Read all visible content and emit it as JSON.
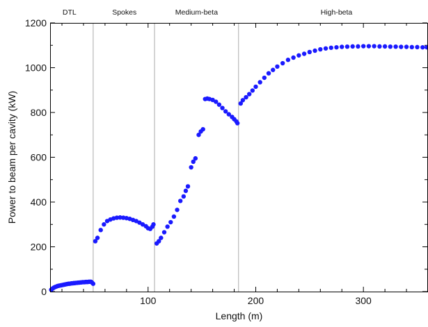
{
  "chart_data": {
    "type": "scatter",
    "xlabel": "Length (m)",
    "ylabel": "Power to beam per cavity (kW)",
    "xlim": [
      9,
      360
    ],
    "ylim": [
      0,
      1200
    ],
    "x_ticks": [
      100,
      200,
      300
    ],
    "y_ticks": [
      0,
      200,
      400,
      600,
      800,
      1000,
      1200
    ],
    "grid": false,
    "legend": "none",
    "marker_color": "#1a1aff",
    "section_boundaries": [
      49,
      106,
      184
    ],
    "sections": [
      {
        "label": "DTL",
        "x_center": 27
      },
      {
        "label": "Spokes",
        "x_center": 78
      },
      {
        "label": "Medium-beta",
        "x_center": 145
      },
      {
        "label": "High-beta",
        "x_center": 275
      }
    ],
    "series": [
      {
        "values": [
          [
            10,
            8
          ],
          [
            11,
            13
          ],
          [
            12,
            16
          ],
          [
            13,
            19
          ],
          [
            14,
            21
          ],
          [
            15,
            23
          ],
          [
            16,
            25
          ],
          [
            17,
            26
          ],
          [
            18,
            27
          ],
          [
            19,
            28
          ],
          [
            20,
            29
          ],
          [
            21,
            30
          ],
          [
            22,
            31
          ],
          [
            23,
            32
          ],
          [
            24,
            33
          ],
          [
            25,
            34
          ],
          [
            26,
            35
          ],
          [
            27,
            35
          ],
          [
            28,
            36
          ],
          [
            29,
            37
          ],
          [
            30,
            37
          ],
          [
            31,
            38
          ],
          [
            32,
            38
          ],
          [
            33,
            39
          ],
          [
            34,
            39
          ],
          [
            35,
            40
          ],
          [
            36,
            40
          ],
          [
            37,
            41
          ],
          [
            38,
            41
          ],
          [
            39,
            42
          ],
          [
            40,
            42
          ],
          [
            41,
            42
          ],
          [
            42,
            43
          ],
          [
            43,
            43
          ],
          [
            44,
            43
          ],
          [
            45,
            44
          ],
          [
            46,
            44
          ],
          [
            47,
            44
          ],
          [
            48,
            40
          ],
          [
            49,
            35
          ],
          [
            51,
            225
          ],
          [
            53,
            240
          ],
          [
            56,
            275
          ],
          [
            59,
            300
          ],
          [
            62,
            315
          ],
          [
            65,
            322
          ],
          [
            68,
            327
          ],
          [
            71,
            330
          ],
          [
            74,
            331
          ],
          [
            77,
            330
          ],
          [
            80,
            328
          ],
          [
            83,
            325
          ],
          [
            86,
            320
          ],
          [
            89,
            315
          ],
          [
            92,
            308
          ],
          [
            95,
            300
          ],
          [
            98,
            292
          ],
          [
            100,
            283
          ],
          [
            102,
            280
          ],
          [
            104,
            290
          ],
          [
            105,
            300
          ],
          [
            108,
            215
          ],
          [
            110,
            225
          ],
          [
            112,
            240
          ],
          [
            115,
            265
          ],
          [
            118,
            290
          ],
          [
            121,
            310
          ],
          [
            124,
            335
          ],
          [
            127,
            365
          ],
          [
            130,
            405
          ],
          [
            133,
            425
          ],
          [
            135,
            450
          ],
          [
            137,
            470
          ],
          [
            140,
            555
          ],
          [
            142,
            580
          ],
          [
            144,
            595
          ],
          [
            147,
            700
          ],
          [
            149,
            715
          ],
          [
            151,
            725
          ],
          [
            153,
            860
          ],
          [
            155,
            862
          ],
          [
            157,
            860
          ],
          [
            160,
            856
          ],
          [
            163,
            848
          ],
          [
            166,
            835
          ],
          [
            169,
            820
          ],
          [
            172,
            805
          ],
          [
            175,
            792
          ],
          [
            178,
            780
          ],
          [
            180,
            770
          ],
          [
            182,
            760
          ],
          [
            183,
            752
          ],
          [
            186,
            840
          ],
          [
            188,
            855
          ],
          [
            191,
            868
          ],
          [
            194,
            882
          ],
          [
            197,
            898
          ],
          [
            200,
            915
          ],
          [
            204,
            935
          ],
          [
            208,
            955
          ],
          [
            212,
            975
          ],
          [
            216,
            990
          ],
          [
            220,
            1005
          ],
          [
            225,
            1020
          ],
          [
            230,
            1035
          ],
          [
            235,
            1045
          ],
          [
            240,
            1055
          ],
          [
            245,
            1062
          ],
          [
            250,
            1070
          ],
          [
            255,
            1076
          ],
          [
            260,
            1082
          ],
          [
            265,
            1086
          ],
          [
            270,
            1089
          ],
          [
            275,
            1091
          ],
          [
            280,
            1093
          ],
          [
            285,
            1094
          ],
          [
            290,
            1095
          ],
          [
            295,
            1095
          ],
          [
            300,
            1096
          ],
          [
            305,
            1096
          ],
          [
            310,
            1096
          ],
          [
            315,
            1095
          ],
          [
            320,
            1095
          ],
          [
            325,
            1094
          ],
          [
            330,
            1094
          ],
          [
            335,
            1093
          ],
          [
            340,
            1093
          ],
          [
            345,
            1092
          ],
          [
            350,
            1092
          ],
          [
            355,
            1091
          ],
          [
            359,
            1091
          ]
        ]
      }
    ]
  }
}
